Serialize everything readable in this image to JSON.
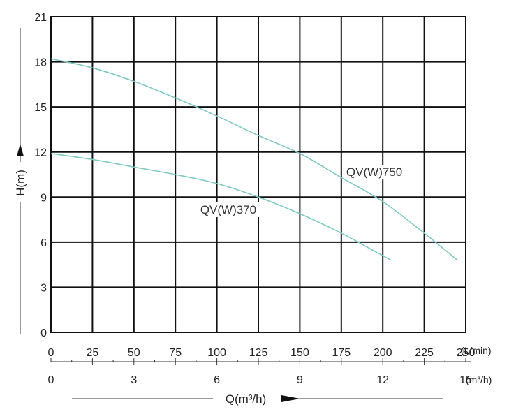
{
  "chart_data": {
    "type": "line",
    "title": "",
    "ylabel": "H(m)",
    "xlabel": "Q(m³/h)",
    "ylim": [
      0,
      21
    ],
    "yticks": [
      "0",
      "3",
      "6",
      "9",
      "12",
      "15",
      "18",
      "21"
    ],
    "x_primary": {
      "unit": "(L/min)",
      "range": [
        0,
        250
      ],
      "ticks": [
        "0",
        "25",
        "50",
        "75",
        "100",
        "125",
        "150",
        "175",
        "200",
        "225",
        "250"
      ]
    },
    "x_secondary": {
      "unit": "(m³/h)",
      "range": [
        0,
        15
      ],
      "ticks": [
        "0",
        "3",
        "6",
        "9",
        "12",
        "15"
      ]
    },
    "grid": true,
    "series": [
      {
        "name": "QV(W)750",
        "color": "#7fc8c4",
        "x_lmin": [
          0,
          25,
          50,
          75,
          100,
          125,
          150,
          175,
          200,
          225,
          245
        ],
        "y": [
          18.2,
          17.6,
          16.7,
          15.6,
          14.4,
          13.1,
          11.9,
          10.3,
          8.7,
          6.6,
          4.8
        ]
      },
      {
        "name": "QV(W)370",
        "color": "#7fc8c4",
        "x_lmin": [
          0,
          25,
          50,
          75,
          100,
          125,
          150,
          175,
          195,
          205
        ],
        "y": [
          11.9,
          11.5,
          11.0,
          10.5,
          9.9,
          9.0,
          7.9,
          6.6,
          5.4,
          4.8
        ]
      }
    ],
    "annotations": [
      {
        "text": "QV(W)750",
        "x_lmin": 178,
        "y": 10.4
      },
      {
        "text": "QV(W)370",
        "x_lmin": 90,
        "y": 7.9
      }
    ]
  }
}
